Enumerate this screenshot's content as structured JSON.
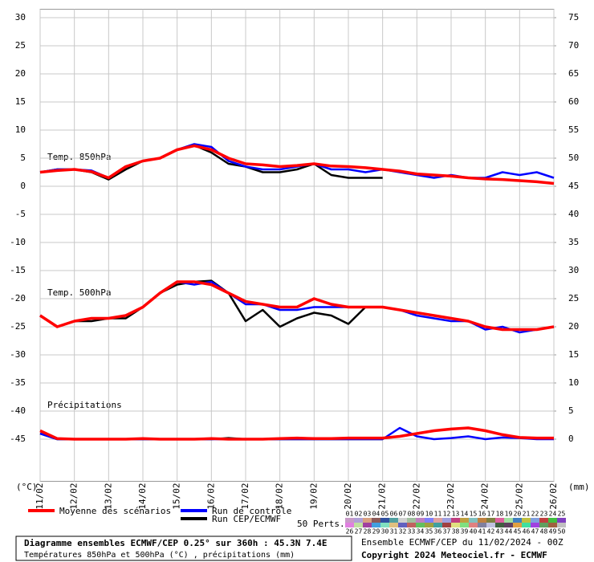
{
  "chart_data": {
    "type": "line",
    "x": [
      "11/02",
      null,
      "12/02",
      null,
      "13/02",
      null,
      "14/02",
      null,
      "15/02",
      null,
      "16/02",
      null,
      "17/02",
      null,
      "18/02",
      null,
      "19/02",
      null,
      "20/02",
      null,
      "21/02",
      null,
      "22/02",
      null,
      "23/02",
      null,
      "24/02",
      null,
      "25/02",
      null,
      "26/02"
    ],
    "ylim": [
      -52.5,
      31.5
    ],
    "yticks": [
      -45,
      -40,
      -35,
      -30,
      -25,
      -20,
      -15,
      -10,
      -5,
      0,
      5,
      10,
      15,
      20,
      25,
      30
    ],
    "y2lim": [
      -7.5,
      76.5
    ],
    "y2ticks": [
      0,
      5,
      10,
      15,
      20,
      25,
      30,
      35,
      40,
      45,
      50,
      55,
      60,
      65,
      70,
      75
    ],
    "ylabel": "(°C)",
    "y2label": "(mm)",
    "grid": true,
    "annotations": [
      "Temp. 850hPa",
      "Temp. 500hPa",
      "Précipitations"
    ],
    "series": [
      {
        "name": "Moyenne des scénarios",
        "color": "#ff0000",
        "t850": [
          2.5,
          2.8,
          3,
          2.6,
          1.5,
          3.5,
          4.5,
          5,
          6.5,
          7.2,
          6.5,
          5,
          4,
          3.8,
          3.5,
          3.7,
          4,
          3.6,
          3.5,
          3.3,
          3,
          2.7,
          2.2,
          2,
          1.8,
          1.5,
          1.3,
          1.2,
          1,
          0.8,
          0.5
        ],
        "t500": [
          -23,
          -25,
          -24,
          -23.5,
          -23.5,
          -23,
          -21.5,
          -19,
          -17,
          -17,
          -17.5,
          -19,
          -20.5,
          -21,
          -21.5,
          -21.5,
          -20,
          -21,
          -21.5,
          -21.5,
          -21.5,
          -22,
          -22.5,
          -23,
          -23.5,
          -24,
          -25,
          -25.5,
          -25.5,
          -25.5,
          -25
        ],
        "precip": [
          1.5,
          0.1,
          0,
          0,
          0,
          0,
          0.1,
          0,
          0,
          0,
          0.1,
          0,
          0,
          0,
          0.1,
          0.2,
          0.1,
          0.1,
          0.2,
          0.2,
          0.2,
          0.5,
          1,
          1.5,
          1.8,
          2,
          1.5,
          0.8,
          0.3,
          0.2,
          0.2
        ]
      },
      {
        "name": "Run de contrôle",
        "color": "#0000ff",
        "t850": [
          2.5,
          3,
          3,
          2.8,
          1.5,
          3.5,
          4.5,
          5,
          6.5,
          7.5,
          7,
          4.5,
          3.5,
          3,
          3,
          3.5,
          4,
          3,
          3,
          2.5,
          3,
          2.5,
          2,
          1.5,
          2,
          1.5,
          1.5,
          2.5,
          2,
          2.5,
          1.5
        ],
        "t500": [
          -23,
          -25,
          -24,
          -23.5,
          -23.5,
          -23,
          -21.5,
          -19,
          -17,
          -17.5,
          -17,
          -19,
          -21,
          -21,
          -22,
          -22,
          -21.5,
          -21.5,
          -21.5,
          -21.5,
          -21.5,
          -22,
          -23,
          -23.5,
          -24,
          -24,
          -25.5,
          -25,
          -26,
          -25.5,
          -25
        ],
        "precip": [
          1,
          0,
          0,
          0,
          0,
          0,
          0,
          0,
          0,
          0,
          0,
          0,
          0,
          0,
          0,
          0,
          0,
          0,
          0,
          0,
          0,
          2,
          0.5,
          0,
          0.2,
          0.5,
          0,
          0.3,
          0.2,
          0,
          0
        ]
      },
      {
        "name": "Run CEP/ECMWF",
        "color": "#000000",
        "t850": [
          2.5,
          3,
          3,
          2.5,
          1.2,
          3,
          4.5,
          5,
          6.5,
          7.3,
          6,
          4,
          3.5,
          2.5,
          2.5,
          3,
          4,
          2,
          1.5,
          1.5,
          1.5,
          null,
          null,
          null,
          null,
          null,
          null,
          null,
          null,
          null,
          null
        ],
        "t500": [
          -23,
          -25,
          -24,
          -24,
          -23.5,
          -23.5,
          -21.5,
          -19,
          -17.5,
          -17,
          -16.8,
          -19,
          -24,
          -22,
          -25,
          -23.5,
          -22.5,
          -23,
          -24.5,
          -21.5,
          -21.5,
          null,
          null,
          null,
          null,
          null,
          null,
          null,
          null,
          null,
          null
        ],
        "precip": [
          1,
          0,
          0,
          0,
          0,
          0,
          0,
          0,
          0,
          0,
          0,
          0.2,
          0,
          0,
          0,
          0,
          0,
          0,
          0,
          0,
          0,
          null,
          null,
          null,
          null,
          null,
          null,
          null,
          null,
          null,
          null
        ]
      }
    ],
    "perturbations_label": "50 Perts.",
    "perturbation_labels": [
      "01",
      "02",
      "03",
      "04",
      "05",
      "06",
      "07",
      "08",
      "09",
      "10",
      "11",
      "12",
      "13",
      "14",
      "15",
      "16",
      "17",
      "18",
      "19",
      "20",
      "21",
      "22",
      "23",
      "24",
      "25",
      "26",
      "27",
      "28",
      "29",
      "30",
      "31",
      "32",
      "33",
      "34",
      "35",
      "36",
      "37",
      "38",
      "39",
      "40",
      "41",
      "42",
      "43",
      "44",
      "45",
      "46",
      "47",
      "48",
      "49",
      "50"
    ],
    "perturbation_colors": [
      "#c89bc8",
      "#b0a0d8",
      "#d8a080",
      "#8b5a5a",
      "#3050a0",
      "#50a0a0",
      "#d0d0d0",
      "#a0c0a0",
      "#c080c0",
      "#8080ff",
      "#e0a0a0",
      "#a0a0e0",
      "#c04080",
      "#c0a040",
      "#80c0c0",
      "#c08040",
      "#808040",
      "#e060a0",
      "#a0e0a0",
      "#4080c0",
      "#c0c040",
      "#80a0e0",
      "#c04040",
      "#40c040",
      "#8040c0",
      "#e080e0",
      "#c0e0a0",
      "#a040a0",
      "#40a0e0",
      "#80e0c0",
      "#e0c080",
      "#6060c0",
      "#c06060",
      "#60c060",
      "#a0a040",
      "#40a0a0",
      "#a04040",
      "#e0e080",
      "#80e080",
      "#e08080",
      "#8080a0",
      "#c0c0e0",
      "#406040",
      "#604060",
      "#e0a040",
      "#40e0a0",
      "#a040e0",
      "#60a060",
      "#a06040",
      "#c0c0c0"
    ],
    "footer": {
      "title": "Diagramme ensembles ECMWF/CEP 0.25° sur 360h : 45.3N 7.4E",
      "subtitle": "Températures 850hPa et 500hPa (°C) , précipitations (mm)",
      "run": "Ensemble ECMWF/CEP du 11/02/2024 - 00Z",
      "copyright": "Copyright 2024 Meteociel.fr - ECMWF"
    }
  }
}
